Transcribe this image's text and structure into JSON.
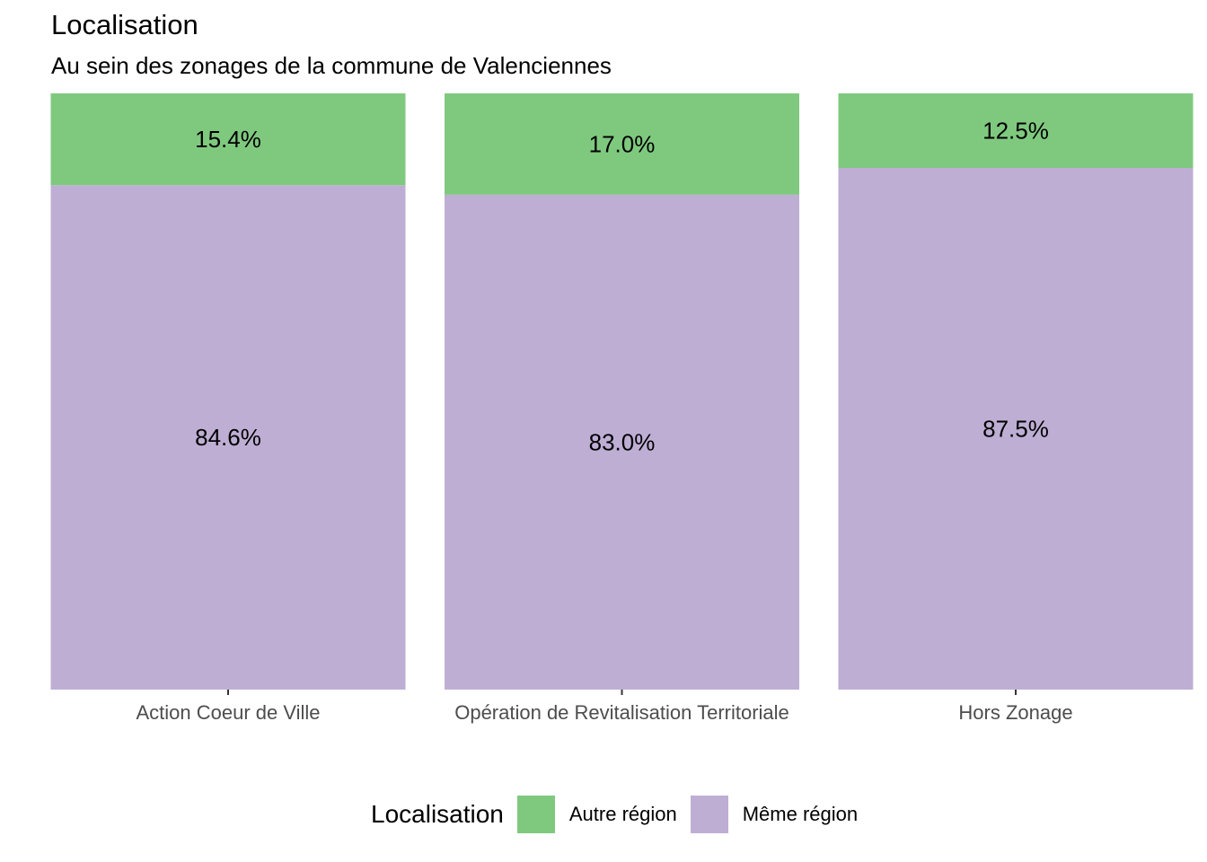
{
  "colors": {
    "Autre région": "#7fc97f",
    "Même région": "#beaed4"
  },
  "chart_data": {
    "type": "bar",
    "stacked": true,
    "normalized": true,
    "title": "Localisation",
    "subtitle": "Au sein des zonages de la commune de Valenciennes",
    "categories": [
      "Action Coeur de Ville",
      "Opération de Revitalisation Territoriale",
      "Hors Zonage"
    ],
    "series": [
      {
        "name": "Même région",
        "values": [
          84.6,
          83.0,
          87.5
        ],
        "labels": [
          "84.6%",
          "83.0%",
          "87.5%"
        ]
      },
      {
        "name": "Autre région",
        "values": [
          15.4,
          17.0,
          12.5
        ],
        "labels": [
          "15.4%",
          "17.0%",
          "12.5%"
        ]
      }
    ],
    "ylim": [
      0,
      100
    ],
    "grid": false,
    "legend": {
      "title": "Localisation",
      "position": "bottom",
      "entries": [
        "Autre région",
        "Même région"
      ]
    }
  }
}
